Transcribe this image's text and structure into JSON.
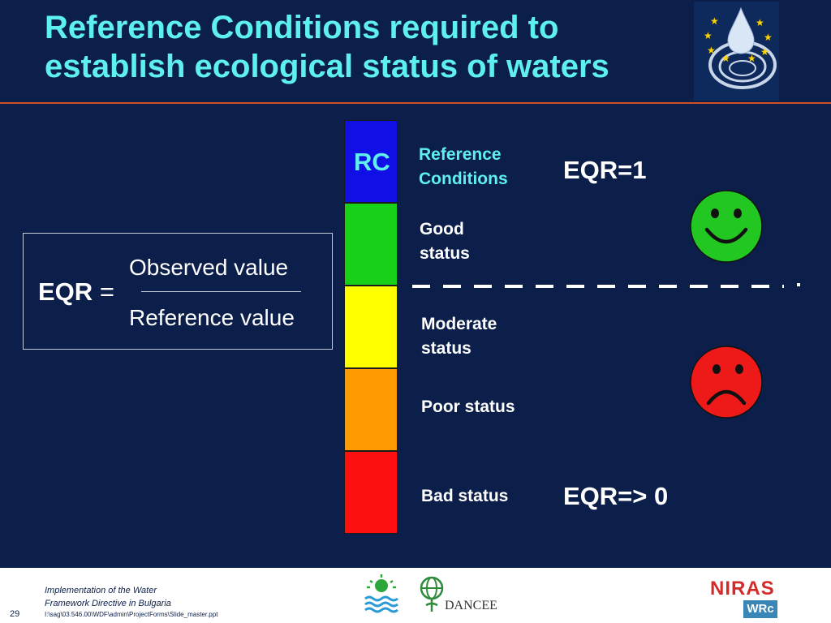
{
  "title": "Reference Conditions required to establish ecological status of waters",
  "formula": {
    "lhs": "EQR",
    "equals": "=",
    "numerator": "Observed value",
    "denominator": "Reference value"
  },
  "scale": {
    "rc_label": "RC",
    "segments": [
      {
        "label": "Reference Conditions",
        "color": "#1010e6"
      },
      {
        "label": "Good status",
        "color": "#18d018"
      },
      {
        "label": "Moderate status",
        "color": "#ffff00"
      },
      {
        "label": "Poor status",
        "color": "#ff9a00"
      },
      {
        "label": "Bad status",
        "color": "#ff1010"
      }
    ]
  },
  "eqr_top": "EQR=1",
  "eqr_bottom": "EQR=> 0",
  "faces": {
    "happy_color": "#22c722",
    "sad_color": "#ee1a1a"
  },
  "colors": {
    "background": "#0c1f4a",
    "accent": "#5ef0ee",
    "rule": "#d0502a"
  },
  "footer": {
    "line1": "Implementation of the Water",
    "line2": "Framework Directive in Bulgaria",
    "path": "I:\\sag\\03.546.00\\WDF\\admin\\ProjectForms\\Slide_master.ppt",
    "page": "29",
    "logos": {
      "dancee": "DANCEE",
      "niras": "NIRAS",
      "wrc": "WRc"
    }
  }
}
